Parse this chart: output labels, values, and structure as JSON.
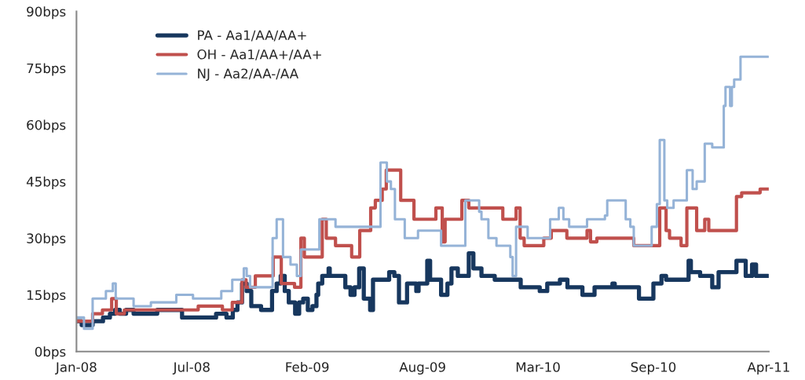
{
  "chart_data": {
    "type": "step",
    "xlim": [
      "2008-01-01",
      "2011-04-15"
    ],
    "xticks": [
      {
        "value": "2008-01-01",
        "label": "Jan-08"
      },
      {
        "value": "2008-07-19",
        "label": "Jul-08"
      },
      {
        "value": "2009-02-04",
        "label": "Feb-09"
      },
      {
        "value": "2009-08-23",
        "label": "Aug-09"
      },
      {
        "value": "2010-03-11",
        "label": "Mar-10"
      },
      {
        "value": "2010-09-27",
        "label": "Sep-10"
      },
      {
        "value": "2011-04-15",
        "label": "Apr-11"
      }
    ],
    "ylim": [
      0,
      90
    ],
    "yticks": [
      {
        "value": 0,
        "label": "0bps"
      },
      {
        "value": 15,
        "label": "15bps"
      },
      {
        "value": 30,
        "label": "30bps"
      },
      {
        "value": 45,
        "label": "45bps"
      },
      {
        "value": 60,
        "label": "60bps"
      },
      {
        "value": 75,
        "label": "75bps"
      },
      {
        "value": 90,
        "label": "90bps"
      }
    ],
    "grid": false,
    "legend": "top left",
    "marker": "none",
    "line_style": "solid",
    "series": [
      {
        "name": "PA - Aa1/AA/AA+",
        "color": "#17375e",
        "x": [
          "2008-01-01",
          "2008-01-10",
          "2008-01-29",
          "2008-02-16",
          "2008-02-28",
          "2008-03-08",
          "2008-03-16",
          "2008-03-27",
          "2008-04-09",
          "2008-05-20",
          "2008-07-02",
          "2008-08-30",
          "2008-09-17",
          "2008-09-28",
          "2008-10-06",
          "2008-10-14",
          "2008-10-22",
          "2008-10-30",
          "2008-11-16",
          "2008-12-05",
          "2008-12-13",
          "2008-12-20",
          "2008-12-27",
          "2009-01-03",
          "2009-01-14",
          "2009-01-21",
          "2009-01-28",
          "2009-02-05",
          "2009-02-13",
          "2009-02-20",
          "2009-02-23",
          "2009-03-02",
          "2009-03-13",
          "2009-03-15",
          "2009-04-11",
          "2009-04-20",
          "2009-04-27",
          "2009-05-05",
          "2009-05-13",
          "2009-05-24",
          "2009-05-29",
          "2009-06-26",
          "2009-07-05",
          "2009-07-13",
          "2009-07-27",
          "2009-08-12",
          "2009-08-16",
          "2009-08-31",
          "2009-09-05",
          "2009-09-24",
          "2009-10-05",
          "2009-10-12",
          "2009-10-23",
          "2009-11-11",
          "2009-11-19",
          "2009-12-03",
          "2009-12-26",
          "2010-01-15",
          "2010-02-09",
          "2010-03-14",
          "2010-03-27",
          "2010-04-18",
          "2010-05-01",
          "2010-05-27",
          "2010-06-17",
          "2010-07-18",
          "2010-07-22",
          "2010-09-02",
          "2010-09-27",
          "2010-10-11",
          "2010-10-19",
          "2010-11-27",
          "2010-12-01",
          "2010-12-17",
          "2011-01-07",
          "2011-01-18",
          "2011-02-18",
          "2011-03-06",
          "2011-03-17",
          "2011-03-24",
          "2011-04-14"
        ],
        "values": [
          8,
          7,
          8,
          9,
          10,
          11,
          10,
          11,
          10,
          11,
          9,
          10,
          9,
          11,
          13,
          18,
          16,
          12,
          11,
          16,
          18,
          20,
          16,
          13,
          10,
          13,
          14,
          11,
          12,
          15,
          18,
          20,
          22,
          20,
          17,
          15,
          17,
          22,
          14,
          11,
          19,
          21,
          20,
          13,
          18,
          16,
          18,
          24,
          19,
          15,
          18,
          22,
          20,
          26,
          22,
          20,
          19,
          19,
          17,
          16,
          18,
          19,
          17,
          15,
          17,
          18,
          17,
          14,
          18,
          20,
          19,
          24,
          21,
          20,
          17,
          21,
          24,
          20,
          23,
          20,
          20
        ]
      },
      {
        "name": "OH - Aa1/AA+/AA+",
        "color": "#c0504d",
        "x": [
          "2008-01-01",
          "2008-01-29",
          "2008-02-15",
          "2008-03-02",
          "2008-03-10",
          "2008-03-24",
          "2008-07-30",
          "2008-09-10",
          "2008-09-27",
          "2008-10-14",
          "2008-10-21",
          "2008-11-06",
          "2008-12-07",
          "2008-12-21",
          "2009-01-13",
          "2009-01-24",
          "2009-01-30",
          "2009-03-02",
          "2009-03-09",
          "2009-03-25",
          "2009-04-22",
          "2009-05-06",
          "2009-05-25",
          "2009-06-02",
          "2009-06-14",
          "2009-06-21",
          "2009-07-16",
          "2009-08-08",
          "2009-09-15",
          "2009-09-26",
          "2009-10-01",
          "2009-10-30",
          "2009-11-11",
          "2010-01-09",
          "2010-02-01",
          "2010-02-08",
          "2010-02-15",
          "2010-03-21",
          "2010-04-03",
          "2010-04-30",
          "2010-06-04",
          "2010-06-10",
          "2010-06-21",
          "2010-08-24",
          "2010-10-08",
          "2010-10-19",
          "2010-10-25",
          "2010-11-14",
          "2010-11-24",
          "2010-12-11",
          "2010-12-25",
          "2011-01-01",
          "2011-02-18",
          "2011-02-27",
          "2011-03-31",
          "2011-04-14"
        ],
        "values": [
          8,
          10,
          11,
          14,
          10,
          11,
          12,
          11,
          13,
          19,
          17,
          20,
          25,
          18,
          17,
          30,
          25,
          35,
          30,
          28,
          25,
          32,
          38,
          40,
          43,
          48,
          40,
          35,
          38,
          29,
          35,
          40,
          38,
          35,
          38,
          30,
          28,
          30,
          32,
          30,
          32,
          29,
          30,
          28,
          38,
          32,
          30,
          28,
          38,
          32,
          35,
          32,
          41,
          42,
          43,
          43
        ]
      },
      {
        "name": "NJ - Aa2/AA-/AA",
        "color": "#95b3d7",
        "x": [
          "2008-01-01",
          "2008-01-14",
          "2008-01-29",
          "2008-02-21",
          "2008-03-04",
          "2008-03-09",
          "2008-04-09",
          "2008-05-09",
          "2008-06-22",
          "2008-07-21",
          "2008-09-08",
          "2008-09-27",
          "2008-10-17",
          "2008-10-22",
          "2008-10-28",
          "2008-12-06",
          "2008-12-13",
          "2008-12-24",
          "2009-01-06",
          "2009-01-17",
          "2009-01-24",
          "2009-02-25",
          "2009-03-25",
          "2009-06-11",
          "2009-06-22",
          "2009-06-29",
          "2009-07-06",
          "2009-07-23",
          "2009-08-15",
          "2009-09-24",
          "2009-11-05",
          "2009-11-29",
          "2009-12-03",
          "2009-12-15",
          "2009-12-29",
          "2010-01-22",
          "2010-01-26",
          "2010-02-01",
          "2010-02-21",
          "2010-04-01",
          "2010-04-16",
          "2010-04-24",
          "2010-05-04",
          "2010-06-04",
          "2010-07-05",
          "2010-07-09",
          "2010-08-10",
          "2010-08-18",
          "2010-08-24",
          "2010-09-24",
          "2010-10-03",
          "2010-10-08",
          "2010-10-16",
          "2010-10-21",
          "2010-11-01",
          "2010-11-24",
          "2010-12-04",
          "2010-12-11",
          "2010-12-25",
          "2011-01-07",
          "2011-01-27",
          "2011-01-30",
          "2011-02-07",
          "2011-02-10",
          "2011-02-14",
          "2011-02-25",
          "2011-04-14"
        ],
        "values": [
          9,
          6,
          14,
          16,
          18,
          14,
          12,
          13,
          15,
          14,
          16,
          19,
          22,
          20,
          17,
          30,
          35,
          25,
          23,
          20,
          27,
          35,
          33,
          50,
          45,
          43,
          35,
          30,
          32,
          28,
          40,
          37,
          35,
          30,
          28,
          25,
          20,
          33,
          30,
          35,
          38,
          35,
          33,
          35,
          36,
          40,
          35,
          33,
          28,
          33,
          39,
          56,
          40,
          38,
          40,
          48,
          43,
          45,
          55,
          54,
          65,
          70,
          65,
          70,
          72,
          78,
          78
        ]
      }
    ]
  }
}
